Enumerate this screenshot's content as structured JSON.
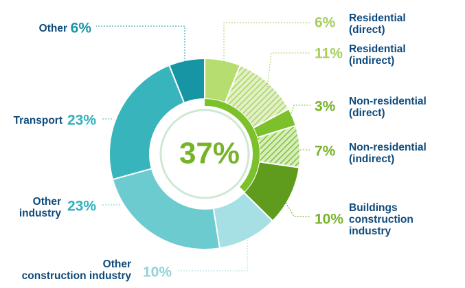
{
  "chart_data": {
    "type": "pie",
    "center_label": "37%",
    "slices": [
      {
        "name_lines": [
          "Residential",
          "(direct)"
        ],
        "pct_label": "6%",
        "value": 6,
        "color": "#b6dd6f",
        "hatch": false
      },
      {
        "name_lines": [
          "Residential",
          "(indirect)"
        ],
        "pct_label": "11%",
        "value": 11,
        "color": "#b6dd6f",
        "hatch": true
      },
      {
        "name_lines": [
          "Non-residential",
          "(direct)"
        ],
        "pct_label": "3%",
        "value": 3,
        "color": "#7cc12c",
        "hatch": false
      },
      {
        "name_lines": [
          "Non-residential",
          "(indirect)"
        ],
        "pct_label": "7%",
        "value": 7,
        "color": "#7cc12c",
        "hatch": true
      },
      {
        "name_lines": [
          "Buildings",
          "construction",
          "industry"
        ],
        "pct_label": "10%",
        "value": 10,
        "color": "#5f9c1d",
        "hatch": false
      },
      {
        "name_lines": [
          "Other",
          "construction industry"
        ],
        "pct_label": "10%",
        "value": 10,
        "color": "#a6e0e4",
        "hatch": false
      },
      {
        "name_lines": [
          "Other",
          "industry"
        ],
        "pct_label": "23%",
        "value": 23,
        "color": "#6ccbcf",
        "hatch": false
      },
      {
        "name_lines": [
          "Transport"
        ],
        "pct_label": "23%",
        "value": 23,
        "color": "#38b4bd",
        "hatch": false
      },
      {
        "name_lines": [
          "Other"
        ],
        "pct_label": "6%",
        "value": 6,
        "color": "#1895a5",
        "hatch": false
      }
    ],
    "colors": {
      "label_dark": "#0e4a7c",
      "green_text": "#77b32a",
      "light_green_text": "#a6cf5c",
      "teal_text": "#2fb2bb",
      "light_teal_text": "#8fd3d8",
      "dark_teal_text": "#1895a5",
      "inner_arc": "#7cc12c",
      "inner_ring": "#cfe8d4"
    }
  }
}
